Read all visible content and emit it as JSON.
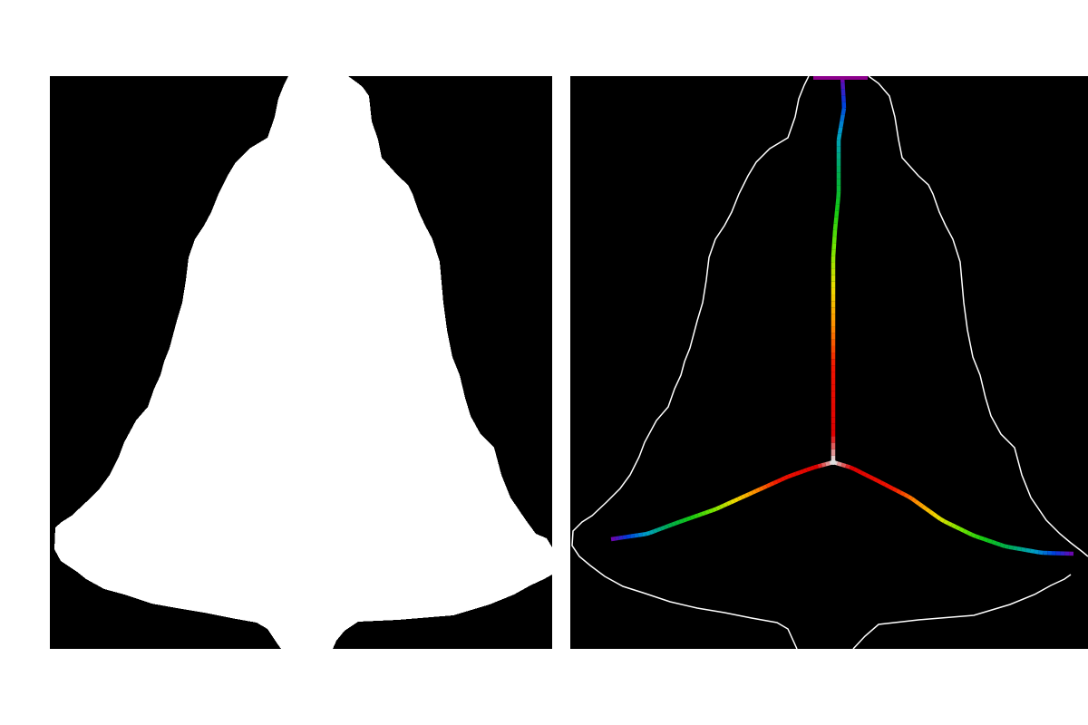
{
  "figure": {
    "background_color": "#ffffff",
    "panel_color": "#000000"
  },
  "left_panel": {
    "content": "binary-mask",
    "fill_color": "#ffffff"
  },
  "right_panel": {
    "content": "outline-with-skeleton",
    "outline_color": "#ffffff",
    "skeleton_colormap": "spectral",
    "branches": [
      "top-branch",
      "left-branch",
      "right-branch"
    ]
  }
}
